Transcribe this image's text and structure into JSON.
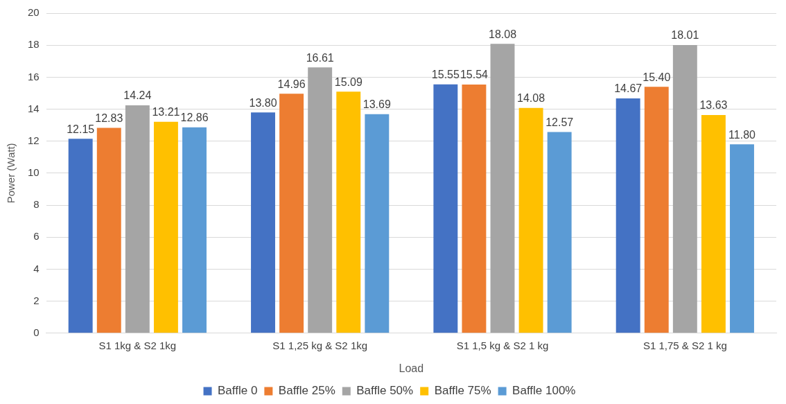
{
  "chart_data": {
    "type": "bar",
    "xlabel": "Load",
    "ylabel": "Power (Watt)",
    "categories": [
      "S1 1kg & S2 1kg",
      "S1 1,25 kg & S2 1kg",
      "S1 1,5 kg & S2 1 kg",
      "S1 1,75 & S2 1 kg"
    ],
    "series": [
      {
        "name": "Baffle 0",
        "color": "#4472c4",
        "values": [
          12.15,
          13.8,
          15.55,
          14.67
        ],
        "value_labels": [
          "12.15",
          "13.80",
          "15.55",
          "14.67"
        ]
      },
      {
        "name": "Baffle 25%",
        "color": "#ed7d31",
        "values": [
          12.83,
          14.96,
          15.54,
          15.4
        ],
        "value_labels": [
          "12.83",
          "14.96",
          "15.54",
          "15.40"
        ]
      },
      {
        "name": "Baffle 50%",
        "color": "#a5a5a5",
        "values": [
          14.24,
          16.61,
          18.08,
          18.01
        ],
        "value_labels": [
          "14.24",
          "16.61",
          "18.08",
          "18.01"
        ]
      },
      {
        "name": "Baffle 75%",
        "color": "#ffc000",
        "values": [
          13.21,
          15.09,
          14.08,
          13.63
        ],
        "value_labels": [
          "13.21",
          "15.09",
          "14.08",
          "13.63"
        ]
      },
      {
        "name": "Baffle 100%",
        "color": "#5b9bd5",
        "values": [
          12.86,
          13.69,
          12.57,
          11.8
        ],
        "value_labels": [
          "12.86",
          "13.69",
          "12.57",
          "11.80"
        ]
      }
    ],
    "ylim": [
      0,
      20
    ],
    "yticks": [
      0,
      2,
      4,
      6,
      8,
      10,
      12,
      14,
      16,
      18,
      20
    ],
    "grid": "y",
    "legend": "bottom"
  }
}
